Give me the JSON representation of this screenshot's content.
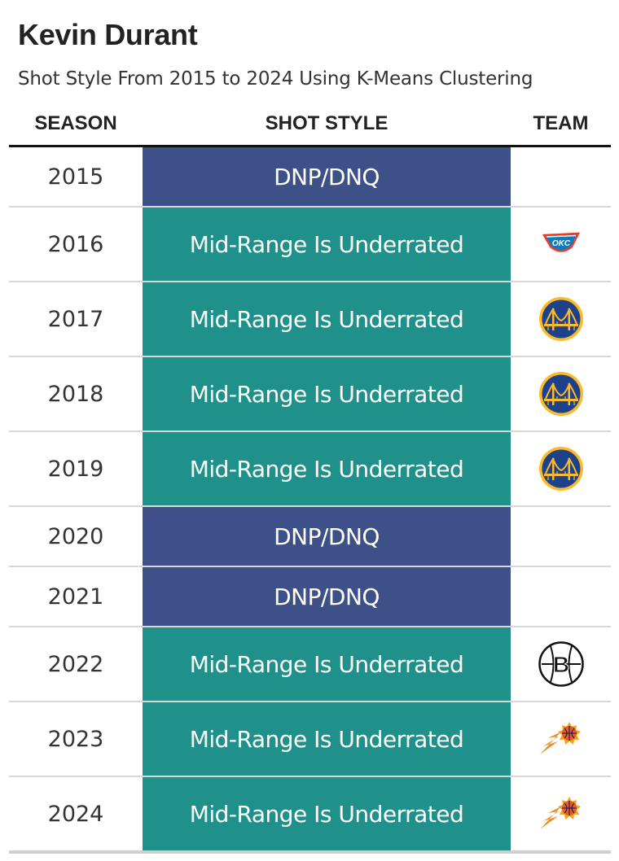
{
  "title": "Kevin Durant",
  "subtitle": "Shot Style From 2015 to 2024 Using K-Means Clustering",
  "columns": {
    "season": "SEASON",
    "shot_style": "SHOT STYLE",
    "team": "TEAM"
  },
  "style_colors": {
    "DNP/DNQ": "#3d5188",
    "Mid-Range Is Underrated": "#20918a"
  },
  "rows": [
    {
      "season": "2015",
      "style": "DNP/DNQ",
      "team_icon": ""
    },
    {
      "season": "2016",
      "style": "Mid-Range Is Underrated",
      "team_icon": "okc-thunder-logo-icon"
    },
    {
      "season": "2017",
      "style": "Mid-Range Is Underrated",
      "team_icon": "golden-state-warriors-logo-icon"
    },
    {
      "season": "2018",
      "style": "Mid-Range Is Underrated",
      "team_icon": "golden-state-warriors-logo-icon"
    },
    {
      "season": "2019",
      "style": "Mid-Range Is Underrated",
      "team_icon": "golden-state-warriors-logo-icon"
    },
    {
      "season": "2020",
      "style": "DNP/DNQ",
      "team_icon": ""
    },
    {
      "season": "2021",
      "style": "DNP/DNQ",
      "team_icon": ""
    },
    {
      "season": "2022",
      "style": "Mid-Range Is Underrated",
      "team_icon": "brooklyn-nets-logo-icon"
    },
    {
      "season": "2023",
      "style": "Mid-Range Is Underrated",
      "team_icon": "phoenix-suns-logo-icon"
    },
    {
      "season": "2024",
      "style": "Mid-Range Is Underrated",
      "team_icon": "phoenix-suns-logo-icon"
    }
  ]
}
